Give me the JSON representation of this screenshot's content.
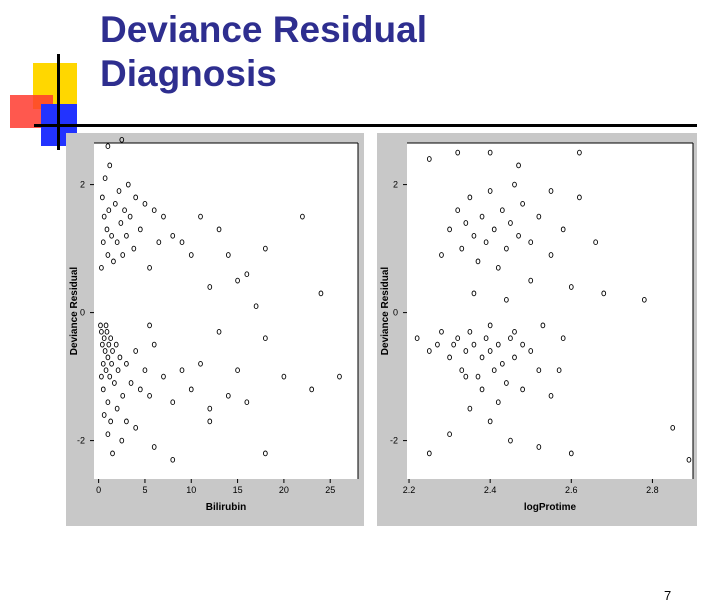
{
  "slide": {
    "title_line1": "Deviance Residual",
    "title_line2": "Diagnosis",
    "page_number": "7"
  },
  "colors": {
    "title": "#2e2e8f",
    "square_yellow": "#ffd700",
    "square_red": "#ff3b2f",
    "square_blue": "#2233ff",
    "panel_gray": "#c8c8c8"
  },
  "chart_data": [
    {
      "type": "scatter",
      "title": "",
      "xlabel": "Bilirubin",
      "ylabel": "Deviance Residual",
      "xlim": [
        -0.5,
        28
      ],
      "ylim": [
        -2.6,
        2.65
      ],
      "xticks": [
        0,
        5,
        10,
        15,
        20,
        25
      ],
      "xtick_labels": [
        "0",
        "5",
        "10",
        "15",
        "20",
        "25"
      ],
      "yticks": [
        -2,
        0,
        2
      ],
      "ytick_labels": [
        "-2",
        "0",
        "2"
      ],
      "marker": "open-circle",
      "grid": false,
      "points": [
        [
          0.3,
          0.7
        ],
        [
          0.5,
          1.1
        ],
        [
          0.6,
          1.5
        ],
        [
          0.4,
          1.8
        ],
        [
          0.7,
          2.1
        ],
        [
          0.9,
          1.3
        ],
        [
          1.0,
          0.9
        ],
        [
          1.1,
          1.6
        ],
        [
          1.2,
          2.3
        ],
        [
          1.4,
          1.2
        ],
        [
          1.6,
          0.8
        ],
        [
          1.8,
          1.7
        ],
        [
          2.0,
          1.1
        ],
        [
          2.2,
          1.9
        ],
        [
          2.4,
          1.4
        ],
        [
          2.6,
          0.9
        ],
        [
          2.8,
          1.6
        ],
        [
          3.0,
          1.2
        ],
        [
          3.2,
          2.0
        ],
        [
          3.4,
          1.5
        ],
        [
          3.8,
          1.0
        ],
        [
          4.0,
          1.8
        ],
        [
          4.5,
          1.3
        ],
        [
          5.0,
          1.7
        ],
        [
          5.5,
          0.7
        ],
        [
          6.0,
          1.6
        ],
        [
          6.5,
          1.1
        ],
        [
          7.0,
          1.5
        ],
        [
          8.0,
          1.2
        ],
        [
          9.0,
          1.1
        ],
        [
          10.0,
          0.9
        ],
        [
          11.0,
          1.5
        ],
        [
          12.0,
          0.4
        ],
        [
          13.0,
          1.3
        ],
        [
          14.0,
          0.9
        ],
        [
          15.0,
          0.5
        ],
        [
          16.0,
          0.6
        ],
        [
          17.0,
          0.1
        ],
        [
          18.0,
          1.0
        ],
        [
          22.0,
          1.5
        ],
        [
          24.0,
          0.3
        ],
        [
          2.5,
          2.7
        ],
        [
          1.0,
          2.6
        ],
        [
          0.3,
          -0.3
        ],
        [
          0.4,
          -0.5
        ],
        [
          0.5,
          -0.8
        ],
        [
          0.6,
          -0.4
        ],
        [
          0.7,
          -0.6
        ],
        [
          0.8,
          -0.9
        ],
        [
          0.9,
          -0.3
        ],
        [
          1.0,
          -0.7
        ],
        [
          1.1,
          -0.5
        ],
        [
          1.2,
          -1.0
        ],
        [
          1.3,
          -0.4
        ],
        [
          1.4,
          -0.8
        ],
        [
          1.5,
          -0.6
        ],
        [
          1.7,
          -1.1
        ],
        [
          1.9,
          -0.5
        ],
        [
          2.1,
          -0.9
        ],
        [
          2.3,
          -0.7
        ],
        [
          2.6,
          -1.3
        ],
        [
          3.0,
          -0.8
        ],
        [
          3.5,
          -1.1
        ],
        [
          4.0,
          -0.6
        ],
        [
          4.5,
          -1.2
        ],
        [
          5.0,
          -0.9
        ],
        [
          5.5,
          -1.3
        ],
        [
          6.0,
          -0.5
        ],
        [
          7.0,
          -1.0
        ],
        [
          8.0,
          -1.4
        ],
        [
          9.0,
          -0.9
        ],
        [
          10.0,
          -1.2
        ],
        [
          11.0,
          -0.8
        ],
        [
          12.0,
          -1.5
        ],
        [
          13.0,
          -0.3
        ],
        [
          14.0,
          -1.3
        ],
        [
          15.0,
          -0.9
        ],
        [
          16.0,
          -1.4
        ],
        [
          18.0,
          -0.4
        ],
        [
          20.0,
          -1.0
        ],
        [
          23.0,
          -1.2
        ],
        [
          26.0,
          -1.0
        ],
        [
          0.6,
          -1.6
        ],
        [
          1.0,
          -1.9
        ],
        [
          1.5,
          -2.2
        ],
        [
          2.5,
          -2.0
        ],
        [
          4.0,
          -1.8
        ],
        [
          6.0,
          -2.1
        ],
        [
          8.0,
          -2.3
        ],
        [
          12.0,
          -1.7
        ],
        [
          18.0,
          -2.2
        ],
        [
          0.2,
          -0.2
        ],
        [
          0.3,
          -1.0
        ],
        [
          0.5,
          -1.2
        ],
        [
          0.8,
          -0.2
        ],
        [
          1.0,
          -1.4
        ],
        [
          1.3,
          -1.7
        ],
        [
          2.0,
          -1.5
        ],
        [
          3.0,
          -1.7
        ],
        [
          5.5,
          -0.2
        ]
      ]
    },
    {
      "type": "scatter",
      "title": "",
      "xlabel": "logProtime",
      "ylabel": "Deviance Residual",
      "xlim": [
        2.195,
        2.9
      ],
      "ylim": [
        -2.6,
        2.65
      ],
      "xticks": [
        2.2,
        2.4,
        2.6,
        2.8
      ],
      "xtick_labels": [
        "2.2",
        "2.4",
        "2.6",
        "2.8"
      ],
      "yticks": [
        -2,
        0,
        2
      ],
      "ytick_labels": [
        "-2",
        "0",
        "2"
      ],
      "marker": "open-circle",
      "grid": false,
      "points": [
        [
          2.22,
          -0.4
        ],
        [
          2.25,
          -0.6
        ],
        [
          2.27,
          -0.5
        ],
        [
          2.28,
          -0.3
        ],
        [
          2.3,
          -0.7
        ],
        [
          2.31,
          -0.5
        ],
        [
          2.32,
          -0.4
        ],
        [
          2.33,
          -0.9
        ],
        [
          2.34,
          -0.6
        ],
        [
          2.35,
          -0.3
        ],
        [
          2.36,
          -0.5
        ],
        [
          2.37,
          -1.0
        ],
        [
          2.38,
          -0.7
        ],
        [
          2.39,
          -0.4
        ],
        [
          2.4,
          -0.6
        ],
        [
          2.41,
          -0.9
        ],
        [
          2.42,
          -0.5
        ],
        [
          2.43,
          -0.8
        ],
        [
          2.44,
          -1.1
        ],
        [
          2.45,
          -0.4
        ],
        [
          2.46,
          -0.7
        ],
        [
          2.48,
          -1.2
        ],
        [
          2.5,
          -0.6
        ],
        [
          2.52,
          -0.9
        ],
        [
          2.55,
          -1.3
        ],
        [
          2.58,
          -0.4
        ],
        [
          2.35,
          -1.5
        ],
        [
          2.4,
          -1.7
        ],
        [
          2.45,
          -2.0
        ],
        [
          2.3,
          -1.9
        ],
        [
          2.25,
          -2.2
        ],
        [
          2.52,
          -2.1
        ],
        [
          2.6,
          -2.2
        ],
        [
          2.28,
          0.9
        ],
        [
          2.3,
          1.3
        ],
        [
          2.32,
          1.6
        ],
        [
          2.33,
          1.0
        ],
        [
          2.34,
          1.4
        ],
        [
          2.35,
          1.8
        ],
        [
          2.36,
          1.2
        ],
        [
          2.37,
          0.8
        ],
        [
          2.38,
          1.5
        ],
        [
          2.39,
          1.1
        ],
        [
          2.4,
          1.9
        ],
        [
          2.41,
          1.3
        ],
        [
          2.42,
          0.7
        ],
        [
          2.43,
          1.6
        ],
        [
          2.44,
          1.0
        ],
        [
          2.45,
          1.4
        ],
        [
          2.46,
          2.0
        ],
        [
          2.47,
          1.2
        ],
        [
          2.48,
          1.7
        ],
        [
          2.5,
          1.1
        ],
        [
          2.52,
          1.5
        ],
        [
          2.55,
          0.9
        ],
        [
          2.58,
          1.3
        ],
        [
          2.6,
          0.4
        ],
        [
          2.62,
          1.8
        ],
        [
          2.68,
          0.3
        ],
        [
          2.25,
          2.4
        ],
        [
          2.32,
          2.5
        ],
        [
          2.4,
          2.5
        ],
        [
          2.47,
          2.3
        ],
        [
          2.62,
          2.5
        ],
        [
          2.44,
          0.2
        ],
        [
          2.5,
          0.5
        ],
        [
          2.36,
          0.3
        ],
        [
          2.4,
          -0.2
        ],
        [
          2.46,
          -0.3
        ],
        [
          2.42,
          -1.4
        ],
        [
          2.38,
          -1.2
        ],
        [
          2.34,
          -1.0
        ],
        [
          2.48,
          -0.5
        ],
        [
          2.53,
          -0.2
        ],
        [
          2.57,
          -0.9
        ],
        [
          2.85,
          -1.8
        ],
        [
          2.89,
          -2.3
        ],
        [
          2.78,
          0.2
        ],
        [
          2.66,
          1.1
        ],
        [
          2.55,
          1.9
        ]
      ]
    }
  ]
}
